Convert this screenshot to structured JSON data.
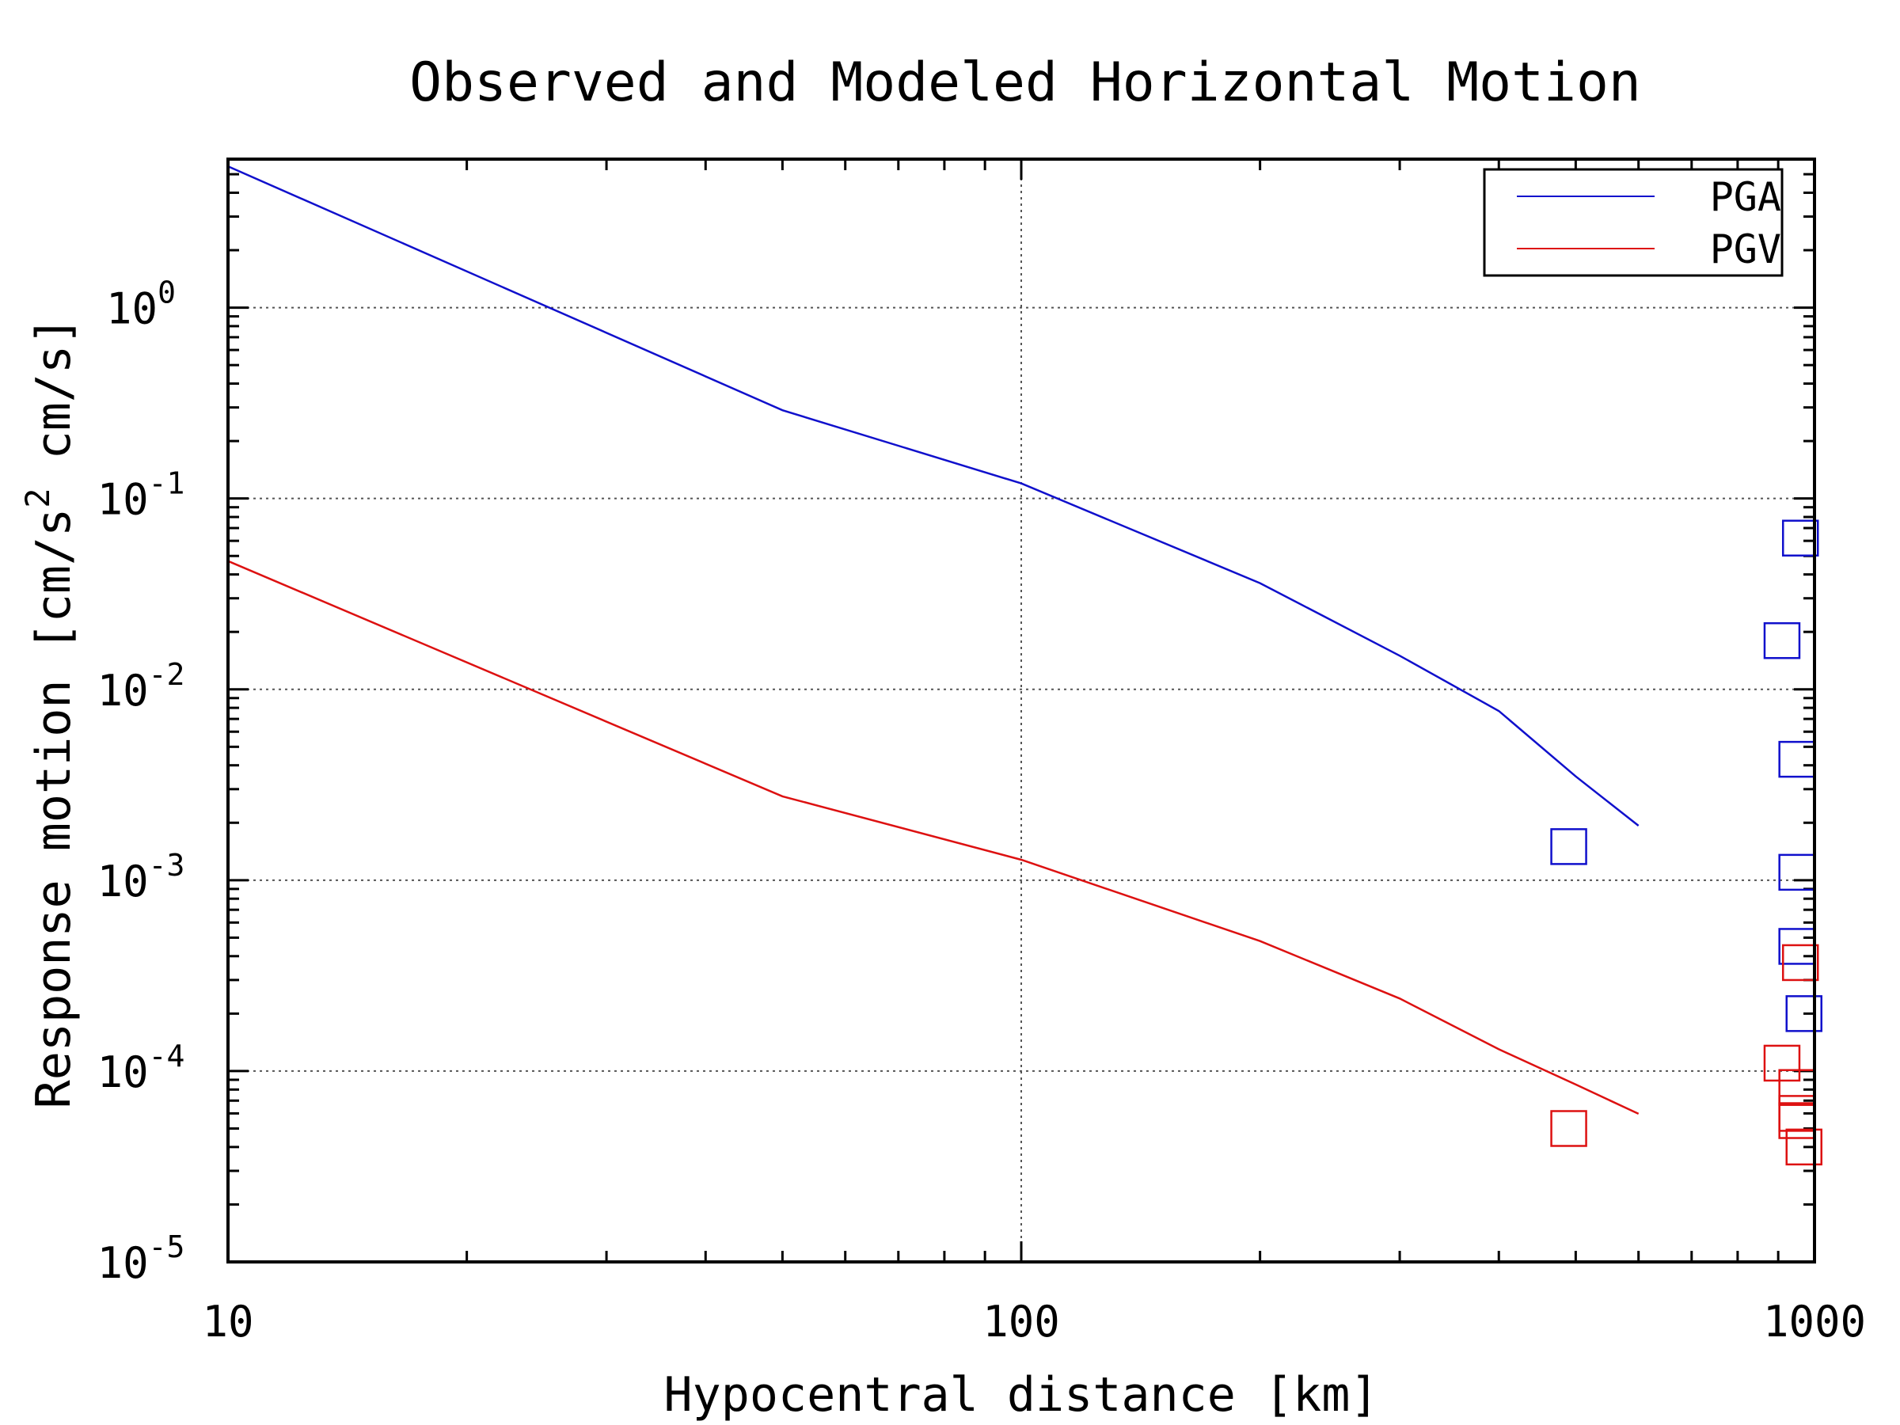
{
  "chart_data": {
    "type": "line",
    "title": "Observed and Modeled Horizontal Motion",
    "xlabel": "Hypocentral distance [km]",
    "ylabel": "Response motion  [cm/s",
    "ylabel_sup": "2",
    "ylabel_tail": "  cm/s]",
    "x_scale": "log",
    "y_scale": "log",
    "xlim": [
      10,
      1000
    ],
    "ylim": [
      1e-05,
      6
    ],
    "grid": true,
    "legend_position": "top-right",
    "x_ticks": [
      {
        "value": 10,
        "label": "10"
      },
      {
        "value": 100,
        "label": "100"
      },
      {
        "value": 1000,
        "label": "1000"
      }
    ],
    "y_ticks": [
      {
        "value": 1,
        "base": "10",
        "exp": "0"
      },
      {
        "value": 0.1,
        "base": "10",
        "exp": "-1"
      },
      {
        "value": 0.01,
        "base": "10",
        "exp": "-2"
      },
      {
        "value": 0.001,
        "base": "10",
        "exp": "-3"
      },
      {
        "value": 0.0001,
        "base": "10",
        "exp": "-4"
      },
      {
        "value": 1e-05,
        "base": "10",
        "exp": "-5"
      }
    ],
    "series": [
      {
        "name": "PGA",
        "color": "#1010cc",
        "line": [
          [
            10,
            5.5
          ],
          [
            50,
            0.29
          ],
          [
            100,
            0.12
          ],
          [
            200,
            0.036
          ],
          [
            300,
            0.015
          ],
          [
            400,
            0.0077
          ],
          [
            500,
            0.0035
          ],
          [
            600,
            0.00193
          ]
        ],
        "observed": [
          [
            490,
            0.0015
          ],
          [
            960,
            0.062
          ],
          [
            910,
            0.018
          ],
          [
            950,
            0.0043
          ],
          [
            950,
            0.0011
          ],
          [
            950,
            0.00045
          ],
          [
            970,
            0.0002
          ]
        ]
      },
      {
        "name": "PGV",
        "color": "#dd1111",
        "line": [
          [
            10,
            0.047
          ],
          [
            50,
            0.00275
          ],
          [
            100,
            0.00128
          ],
          [
            200,
            0.00048
          ],
          [
            300,
            0.00024
          ],
          [
            400,
            0.00013
          ],
          [
            500,
            8.5e-05
          ],
          [
            600,
            5.97e-05
          ]
        ],
        "observed": [
          [
            490,
            5e-05
          ],
          [
            960,
            0.00037
          ],
          [
            910,
            0.00011
          ],
          [
            950,
            8.2e-05
          ],
          [
            950,
            6e-05
          ],
          [
            950,
            5.5e-05
          ],
          [
            970,
            4e-05
          ]
        ]
      }
    ]
  }
}
